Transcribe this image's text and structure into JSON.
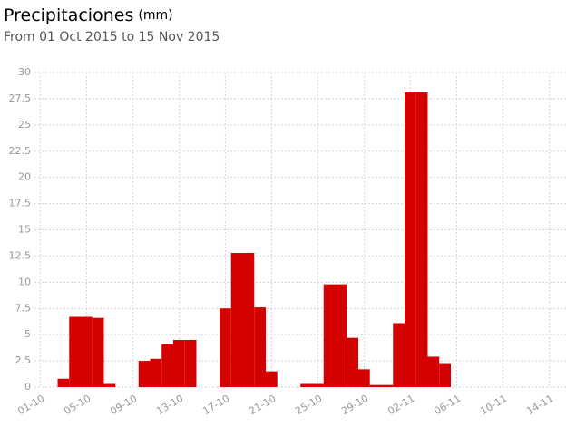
{
  "chart_data": {
    "type": "bar",
    "title": "Precipitaciones",
    "title_unit": "(mm)",
    "subtitle": "From 01 Oct 2015 to 15 Nov 2015",
    "categories": [
      "01-10",
      null,
      null,
      null,
      "05-10",
      null,
      null,
      null,
      "09-10",
      null,
      null,
      null,
      "13-10",
      null,
      null,
      null,
      "17-10",
      null,
      null,
      null,
      "21-10",
      null,
      null,
      null,
      "25-10",
      null,
      null,
      null,
      "29-10",
      null,
      null,
      null,
      "02-11",
      null,
      null,
      null,
      "06-11",
      null,
      null,
      null,
      "10-11",
      null,
      null,
      null,
      "14-11",
      null
    ],
    "values": [
      0,
      0,
      0.8,
      6.7,
      6.7,
      6.6,
      0.3,
      0,
      0,
      2.5,
      2.7,
      4.1,
      4.5,
      4.5,
      0,
      0,
      7.5,
      12.8,
      12.8,
      7.6,
      1.5,
      0,
      0,
      0.3,
      0.3,
      9.8,
      9.8,
      4.7,
      1.7,
      0.2,
      0.2,
      6.1,
      28.1,
      28.1,
      2.9,
      2.2,
      0,
      0,
      0,
      0,
      0,
      0,
      0,
      0,
      0,
      0
    ],
    "color": "#d50000",
    "ylim": [
      0,
      30
    ],
    "yticks": [
      0,
      2.5,
      5,
      7.5,
      10,
      12.5,
      15,
      17.5,
      20,
      22.5,
      25,
      27.5,
      30
    ],
    "grid": true
  }
}
